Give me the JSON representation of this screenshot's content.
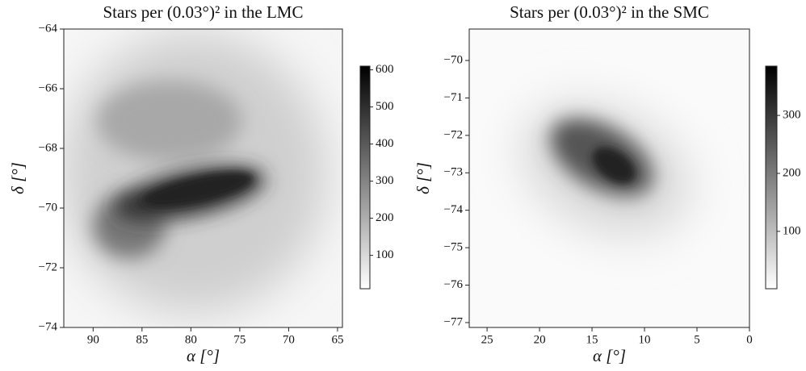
{
  "chart_data": [
    {
      "type": "image",
      "title": "Stars per (0.03°)² in the LMC",
      "xlabel": "α [°]",
      "ylabel": "δ [°]",
      "xlim": [
        93,
        64.5
      ],
      "ylim": [
        -74,
        -64
      ],
      "xticks": [
        90,
        85,
        80,
        75,
        70,
        65
      ],
      "yticks": [
        {
          "value": -74,
          "label": "−74"
        },
        {
          "value": -72,
          "label": "−72"
        },
        {
          "value": -70,
          "label": "−70"
        },
        {
          "value": -68,
          "label": "−68"
        },
        {
          "value": -66,
          "label": "−66"
        },
        {
          "value": -64,
          "label": "−64"
        }
      ],
      "colormap": "gray_r",
      "clim": [
        10,
        610
      ],
      "cticks": [
        100,
        200,
        300,
        400,
        500,
        600
      ]
    },
    {
      "type": "image",
      "title": "Stars per (0.03°)² in the SMC",
      "xlabel": "α [°]",
      "ylabel": "δ [°]",
      "xlim": [
        26.7,
        0
      ],
      "ylim": [
        -77.13,
        -69.16
      ],
      "xticks": [
        25,
        20,
        15,
        10,
        5,
        0
      ],
      "yticks": [
        {
          "value": -77,
          "label": "−77"
        },
        {
          "value": -76,
          "label": "−76"
        },
        {
          "value": -75,
          "label": "−75"
        },
        {
          "value": -74,
          "label": "−74"
        },
        {
          "value": -73,
          "label": "−73"
        },
        {
          "value": -72,
          "label": "−72"
        },
        {
          "value": -71,
          "label": "−71"
        },
        {
          "value": -70,
          "label": "−70"
        }
      ],
      "colormap": "gray_r",
      "clim": [
        1,
        385
      ],
      "cticks": [
        100,
        200,
        300
      ]
    }
  ]
}
